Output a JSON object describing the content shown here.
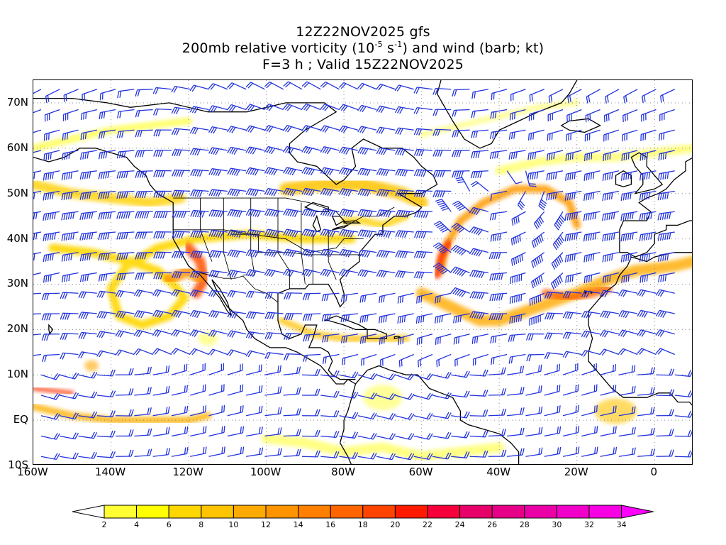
{
  "title": {
    "line1": "12Z22NOV2025 gfs",
    "line2_prefix": "200mb relative vorticity (10",
    "line2_exp1": "-5",
    "line2_mid": " s",
    "line2_exp2": "-1",
    "line2_suffix": ") and wind (barb; kt)",
    "line3": "F=3 h ; Valid 15Z22NOV2025"
  },
  "map": {
    "lat_labels": [
      "70N",
      "60N",
      "50N",
      "40N",
      "30N",
      "20N",
      "10N",
      "EQ",
      "10S"
    ],
    "lon_labels": [
      "160W",
      "140W",
      "120W",
      "100W",
      "80W",
      "60W",
      "40W",
      "20W",
      "0"
    ],
    "lon_range": [
      -160,
      10
    ],
    "lat_range": [
      -10,
      75
    ],
    "barb_color": "#2233dd",
    "coast_color": "#000000",
    "grid_style": "dotted"
  },
  "colorbar": {
    "labels": [
      "2",
      "4",
      "6",
      "8",
      "10",
      "12",
      "14",
      "16",
      "18",
      "20",
      "22",
      "24",
      "26",
      "28",
      "30",
      "32",
      "34"
    ],
    "colors": [
      "#ffff33",
      "#ffff00",
      "#ffd700",
      "#ffc400",
      "#ffaa00",
      "#ff9400",
      "#ff7f00",
      "#ff6400",
      "#ff4400",
      "#ff1a00",
      "#f5003a",
      "#e8006a",
      "#e60087",
      "#eb00a8",
      "#f000c8",
      "#f700e3"
    ]
  }
}
